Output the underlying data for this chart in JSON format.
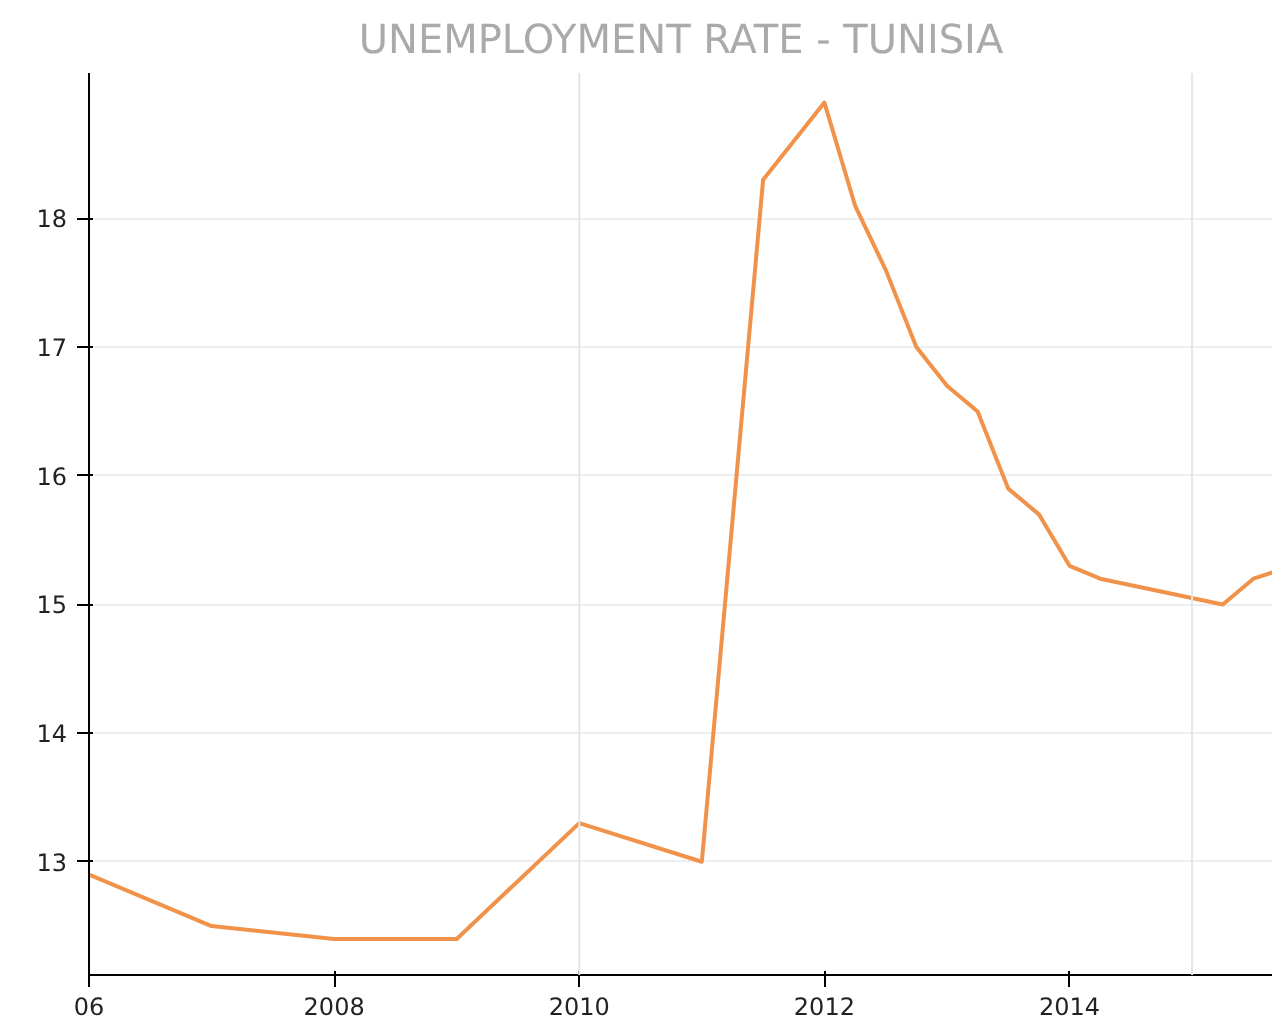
{
  "chart_data": {
    "type": "line",
    "title": "UNEMPLOYMENT RATE - TUNISIA",
    "x": [
      2006,
      2007,
      2008,
      2009,
      2010,
      2011,
      2011.5,
      2012,
      2012.25,
      2012.5,
      2012.75,
      2013,
      2013.25,
      2013.5,
      2013.75,
      2014,
      2014.25,
      2015.25,
      2015.5,
      2015.66
    ],
    "series": [
      {
        "color": "#f0924a",
        "values": [
          12.9,
          12.5,
          12.4,
          12.4,
          13.3,
          13.0,
          18.3,
          18.9,
          18.1,
          17.6,
          17.0,
          16.7,
          16.5,
          15.9,
          15.7,
          15.3,
          15.2,
          15.0,
          15.2,
          15.25
        ]
      }
    ],
    "xlim": [
      2006,
      2015.66
    ],
    "xticks": [
      {
        "value": 2006,
        "label": "06"
      },
      2008,
      2010,
      2012,
      2014
    ],
    "ylim": [
      12.12,
      19.13
    ],
    "yticks": [
      13,
      14,
      15,
      16,
      17,
      18
    ],
    "grid": "y",
    "marker": "none",
    "line_style": "solid",
    "ref_lines": [
      {
        "axis": "x",
        "value": 2010,
        "color": "#e6e6e6"
      },
      {
        "axis": "x",
        "value": 2015,
        "color": "#e6e6e6"
      }
    ]
  }
}
